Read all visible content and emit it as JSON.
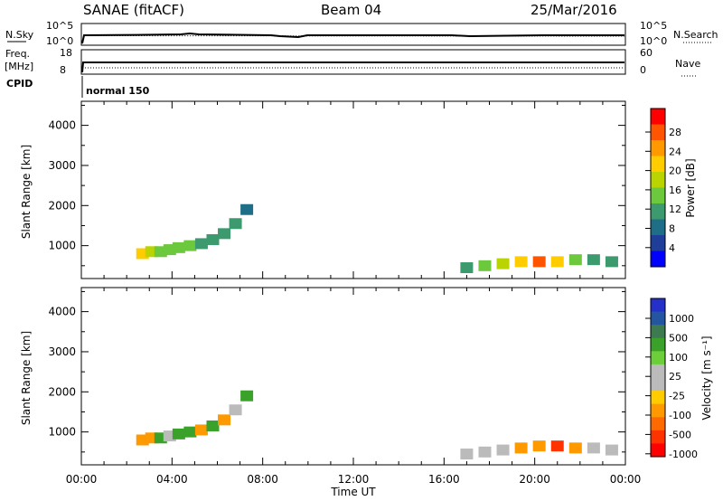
{
  "header": {
    "station": "SANAE (fitACF)",
    "beam": "Beam 04",
    "date": "25/Mar/2016"
  },
  "top_panels": {
    "nsky_label": "N.Sky",
    "nsky_tick_top": "10^5",
    "nsky_tick_bottom": "10^0",
    "nsearch_tick_top": "10^5",
    "nsearch_tick_bottom": "10^0",
    "nsearch_label": "N.Search",
    "freq_label": "Freq.",
    "freq_unit": "[MHz]",
    "freq_tick_top": "18",
    "freq_tick_bottom": "8",
    "nave_tick_top": "60",
    "nave_tick_bottom": "0",
    "nave_label": "Nave",
    "cpid_label": "CPID",
    "cpid_value": "normal 150"
  },
  "x_axis": {
    "label": "Time UT",
    "ticks": [
      "00:00",
      "04:00",
      "08:00",
      "12:00",
      "16:00",
      "20:00",
      "00:00"
    ]
  },
  "power_colorbar": {
    "label": "Power [dB]",
    "ticks": [
      "28",
      "24",
      "20",
      "16",
      "12",
      "8",
      "4"
    ],
    "colors": [
      "#ff0000",
      "#ff5500",
      "#ff9900",
      "#ffcc00",
      "#b9d400",
      "#6cc83c",
      "#3d9a6f",
      "#1f6e87",
      "#1e3e9a",
      "#0000ff"
    ]
  },
  "velocity_colorbar": {
    "label": "Velocity [m s⁻¹]",
    "ticks": [
      "1000",
      "500",
      "100",
      "25",
      "-25",
      "-100",
      "-500",
      "-1000"
    ],
    "colors": [
      "#2530c8",
      "#2455a0",
      "#3d7a50",
      "#3aa22a",
      "#6ccf3a",
      "#bbbbbb",
      "#bbbbbb",
      "#ffcc00",
      "#ff9900",
      "#ff6a00",
      "#ff3300",
      "#ff0000"
    ]
  },
  "chart_data": [
    {
      "type": "heatmap",
      "title": "",
      "xlabel": "Time UT",
      "ylabel": "Slant Range [km]",
      "xlim": [
        "00:00",
        "24:00"
      ],
      "ylim": [
        180,
        4600
      ],
      "yticks": [
        "1000",
        "2000",
        "3000",
        "4000"
      ],
      "colorbar": "Power [dB]",
      "series": [
        {
          "x": [
            2.7,
            3.1,
            3.5,
            3.9,
            4.3,
            4.8,
            5.3,
            5.8,
            6.3,
            6.8,
            7.3
          ],
          "y": [
            800,
            850,
            850,
            900,
            950,
            1000,
            1050,
            1150,
            1300,
            1550,
            1900
          ],
          "values": [
            20,
            18,
            16,
            14,
            14,
            14,
            12,
            12,
            12,
            10,
            8
          ]
        },
        {
          "x": [
            17.0,
            17.8,
            18.6,
            19.4,
            20.2,
            21.0,
            21.8,
            22.6,
            23.4
          ],
          "y": [
            450,
            500,
            550,
            600,
            600,
            600,
            650,
            650,
            600
          ],
          "values": [
            12,
            14,
            18,
            22,
            28,
            22,
            16,
            12,
            10
          ]
        }
      ]
    },
    {
      "type": "heatmap",
      "title": "",
      "xlabel": "Time UT",
      "ylabel": "Slant Range [km]",
      "xlim": [
        "00:00",
        "24:00"
      ],
      "ylim": [
        180,
        4600
      ],
      "yticks": [
        "1000",
        "2000",
        "3000",
        "4000"
      ],
      "colorbar": "Velocity [m s⁻¹]",
      "series": [
        {
          "x": [
            2.7,
            3.1,
            3.5,
            3.9,
            4.3,
            4.8,
            5.3,
            5.8,
            6.3,
            6.8,
            7.3
          ],
          "y": [
            800,
            850,
            850,
            900,
            950,
            1000,
            1050,
            1150,
            1300,
            1550,
            1900
          ],
          "values": [
            -100,
            -100,
            100,
            -25,
            100,
            100,
            -100,
            100,
            -100,
            -25,
            100
          ]
        },
        {
          "x": [
            17.0,
            17.8,
            18.6,
            19.4,
            20.2,
            21.0,
            21.8,
            22.6,
            23.4
          ],
          "y": [
            450,
            500,
            550,
            600,
            650,
            650,
            600,
            600,
            550
          ],
          "values": [
            25,
            25,
            25,
            -100,
            -100,
            -500,
            -100,
            25,
            25
          ]
        }
      ]
    }
  ]
}
